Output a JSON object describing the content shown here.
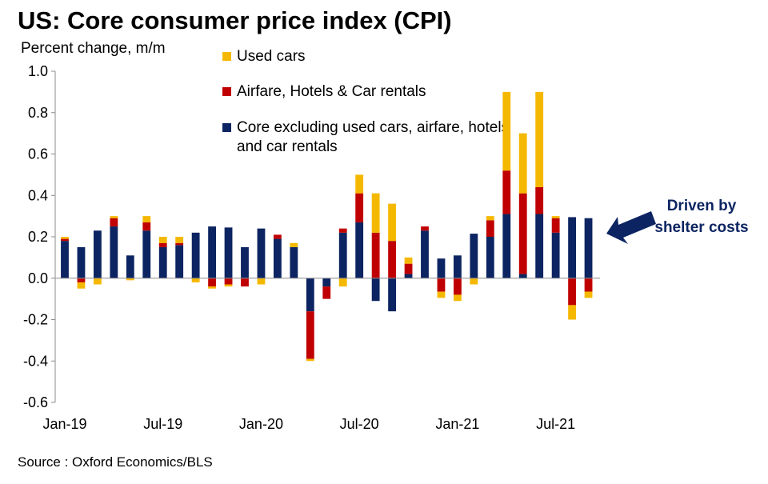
{
  "title": "US: Core consumer price index (CPI)",
  "source": "Source : Oxford Economics/BLS",
  "annotation": {
    "lines": [
      "Driven by",
      "shelter costs"
    ],
    "color": "#0c2461",
    "arrow_color": "#0c2461"
  },
  "chart_data": {
    "type": "bar",
    "stacked": true,
    "ylabel": "Percent change, m/m",
    "ylim": [
      -0.6,
      1.0
    ],
    "yticks": [
      -0.6,
      -0.4,
      -0.2,
      0.0,
      0.2,
      0.4,
      0.6,
      0.8,
      1.0
    ],
    "ytick_labels": [
      "-0.6",
      "-0.4",
      "-0.2",
      "0.0",
      "0.2",
      "0.4",
      "0.6",
      "0.8",
      "1.0"
    ],
    "categories": [
      "Jan-19",
      "Feb-19",
      "Mar-19",
      "Apr-19",
      "May-19",
      "Jun-19",
      "Jul-19",
      "Aug-19",
      "Sep-19",
      "Oct-19",
      "Nov-19",
      "Dec-19",
      "Jan-20",
      "Feb-20",
      "Mar-20",
      "Apr-20",
      "May-20",
      "Jun-20",
      "Jul-20",
      "Aug-20",
      "Sep-20",
      "Oct-20",
      "Nov-20",
      "Dec-20",
      "Jan-21",
      "Feb-21",
      "Mar-21",
      "Apr-21",
      "May-21",
      "Jun-21",
      "Jul-21",
      "Aug-21",
      "Sep-21"
    ],
    "xtick_labels": [
      "Jan-19",
      "Jul-19",
      "Jan-20",
      "Jul-20",
      "Jan-21",
      "Jul-21"
    ],
    "xtick_indices": [
      0,
      6,
      12,
      18,
      24,
      30
    ],
    "grid": false,
    "legend_position": "top-center",
    "series": [
      {
        "name": "Core excluding used cars, airfare, hotels and car rentals",
        "color": "#0c2461",
        "values": [
          0.18,
          0.15,
          0.23,
          0.25,
          0.11,
          0.23,
          0.15,
          0.16,
          0.22,
          0.25,
          0.245,
          0.15,
          0.24,
          0.19,
          0.15,
          -0.16,
          -0.04,
          0.22,
          0.27,
          -0.11,
          -0.16,
          0.02,
          0.23,
          0.095,
          0.11,
          0.215,
          0.2,
          0.31,
          0.02,
          0.31,
          0.22,
          0.295,
          0.29
        ]
      },
      {
        "name": "Airfare, Hotels & Car rentals",
        "color": "#c00000",
        "values": [
          0.01,
          -0.02,
          0.0,
          0.04,
          0.0,
          0.04,
          0.02,
          0.01,
          0.0,
          -0.04,
          -0.03,
          -0.04,
          0.0,
          0.02,
          0.0,
          -0.23,
          -0.06,
          0.02,
          0.14,
          0.22,
          0.18,
          0.05,
          0.02,
          -0.065,
          -0.08,
          0.0,
          0.08,
          0.21,
          0.39,
          0.13,
          0.07,
          -0.13,
          -0.065
        ]
      },
      {
        "name": "Used cars",
        "color": "#f5b800",
        "values": [
          0.01,
          -0.03,
          -0.03,
          0.01,
          -0.01,
          0.03,
          0.03,
          0.03,
          -0.02,
          -0.01,
          -0.01,
          0.0,
          -0.03,
          0.0,
          0.02,
          -0.01,
          0.0,
          -0.04,
          0.09,
          0.19,
          0.18,
          0.03,
          0.0,
          -0.03,
          -0.03,
          -0.03,
          0.02,
          0.38,
          0.29,
          0.46,
          0.01,
          -0.07,
          -0.03
        ]
      }
    ]
  }
}
